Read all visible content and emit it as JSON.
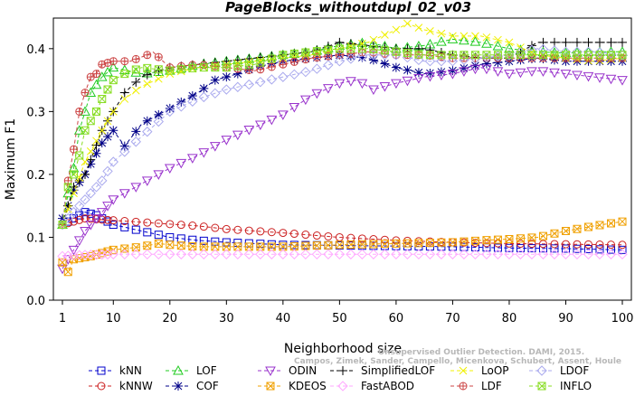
{
  "chart_data": {
    "type": "line",
    "title": "PageBlocks_withoutdupl_02_v03",
    "xlabel": "Neighborhood size",
    "ylabel": "Maximum F1",
    "xlim": [
      1,
      100
    ],
    "ylim": [
      0,
      0.44
    ],
    "x_ticks": [
      1,
      10,
      20,
      30,
      40,
      50,
      60,
      70,
      80,
      90,
      100
    ],
    "y_ticks": [
      0.0,
      0.1,
      0.2,
      0.3,
      0.4
    ],
    "y_tick_labels": [
      "0.0",
      "0.1",
      "0.2",
      "0.3",
      "0.4"
    ],
    "grid": false,
    "legend_position": "bottom",
    "watermark": [
      "Campos, Zimek, Sander, Campello, Micenkova, Schubert, Assent, Houle",
      "Unsupervised Outlier Detection. DAMI, 2015."
    ],
    "series": [
      {
        "name": "kNN",
        "color": "#0000cc",
        "marker": "square",
        "dash": "4,3",
        "points": [
          [
            1,
            0.12
          ],
          [
            3,
            0.13
          ],
          [
            5,
            0.14
          ],
          [
            7,
            0.135
          ],
          [
            10,
            0.12
          ],
          [
            15,
            0.11
          ],
          [
            20,
            0.1
          ],
          [
            25,
            0.095
          ],
          [
            30,
            0.092
          ],
          [
            40,
            0.088
          ],
          [
            50,
            0.087
          ],
          [
            60,
            0.086
          ],
          [
            70,
            0.085
          ],
          [
            80,
            0.083
          ],
          [
            90,
            0.082
          ],
          [
            100,
            0.08
          ]
        ]
      },
      {
        "name": "kNNW",
        "color": "#cc2222",
        "marker": "circle",
        "dash": "4,3",
        "points": [
          [
            1,
            0.12
          ],
          [
            3,
            0.125
          ],
          [
            5,
            0.13
          ],
          [
            8,
            0.128
          ],
          [
            10,
            0.127
          ],
          [
            15,
            0.124
          ],
          [
            20,
            0.121
          ],
          [
            25,
            0.118
          ],
          [
            30,
            0.113
          ],
          [
            40,
            0.107
          ],
          [
            50,
            0.1
          ],
          [
            60,
            0.095
          ],
          [
            70,
            0.092
          ],
          [
            80,
            0.09
          ],
          [
            90,
            0.089
          ],
          [
            100,
            0.088
          ]
        ]
      },
      {
        "name": "LOF",
        "color": "#22cc22",
        "marker": "triangle",
        "dash": "4,3",
        "points": [
          [
            1,
            0.12
          ],
          [
            2,
            0.17
          ],
          [
            3,
            0.21
          ],
          [
            4,
            0.27
          ],
          [
            5,
            0.3
          ],
          [
            6,
            0.33
          ],
          [
            8,
            0.355
          ],
          [
            10,
            0.37
          ],
          [
            15,
            0.36
          ],
          [
            20,
            0.365
          ],
          [
            25,
            0.375
          ],
          [
            30,
            0.38
          ],
          [
            35,
            0.385
          ],
          [
            40,
            0.39
          ],
          [
            45,
            0.395
          ],
          [
            50,
            0.405
          ],
          [
            55,
            0.41
          ],
          [
            60,
            0.4
          ],
          [
            65,
            0.405
          ],
          [
            70,
            0.415
          ],
          [
            75,
            0.41
          ],
          [
            80,
            0.4
          ],
          [
            85,
            0.395
          ],
          [
            90,
            0.393
          ],
          [
            95,
            0.395
          ],
          [
            100,
            0.395
          ]
        ]
      },
      {
        "name": "COF",
        "color": "#000088",
        "marker": "star",
        "dash": "4,3",
        "points": [
          [
            1,
            0.13
          ],
          [
            2,
            0.15
          ],
          [
            3,
            0.175
          ],
          [
            5,
            0.2
          ],
          [
            8,
            0.25
          ],
          [
            10,
            0.27
          ],
          [
            12,
            0.245
          ],
          [
            15,
            0.28
          ],
          [
            20,
            0.305
          ],
          [
            25,
            0.33
          ],
          [
            28,
            0.35
          ],
          [
            32,
            0.36
          ],
          [
            35,
            0.37
          ],
          [
            40,
            0.38
          ],
          [
            45,
            0.385
          ],
          [
            50,
            0.39
          ],
          [
            55,
            0.385
          ],
          [
            60,
            0.37
          ],
          [
            65,
            0.36
          ],
          [
            70,
            0.365
          ],
          [
            75,
            0.375
          ],
          [
            80,
            0.38
          ],
          [
            85,
            0.385
          ],
          [
            90,
            0.38
          ],
          [
            95,
            0.38
          ],
          [
            100,
            0.38
          ]
        ]
      },
      {
        "name": "ODIN",
        "color": "#9933cc",
        "marker": "triangle-down",
        "dash": "4,3",
        "points": [
          [
            1,
            0.05
          ],
          [
            3,
            0.08
          ],
          [
            5,
            0.11
          ],
          [
            8,
            0.14
          ],
          [
            10,
            0.16
          ],
          [
            15,
            0.185
          ],
          [
            20,
            0.21
          ],
          [
            25,
            0.23
          ],
          [
            30,
            0.255
          ],
          [
            35,
            0.275
          ],
          [
            40,
            0.295
          ],
          [
            45,
            0.325
          ],
          [
            50,
            0.345
          ],
          [
            53,
            0.35
          ],
          [
            56,
            0.335
          ],
          [
            60,
            0.345
          ],
          [
            65,
            0.355
          ],
          [
            70,
            0.36
          ],
          [
            75,
            0.37
          ],
          [
            80,
            0.36
          ],
          [
            85,
            0.365
          ],
          [
            90,
            0.36
          ],
          [
            95,
            0.355
          ],
          [
            100,
            0.35
          ]
        ]
      },
      {
        "name": "KDEOS",
        "color": "#f0a000",
        "marker": "square-x",
        "dash": "4,3",
        "points": [
          [
            1,
            0.06
          ],
          [
            2,
            0.045
          ],
          [
            3,
            0.065
          ],
          [
            6,
            0.07
          ],
          [
            10,
            0.08
          ],
          [
            15,
            0.085
          ],
          [
            18,
            0.09
          ],
          [
            20,
            0.088
          ],
          [
            25,
            0.085
          ],
          [
            30,
            0.085
          ],
          [
            40,
            0.085
          ],
          [
            50,
            0.088
          ],
          [
            60,
            0.09
          ],
          [
            70,
            0.092
          ],
          [
            75,
            0.095
          ],
          [
            80,
            0.097
          ],
          [
            85,
            0.1
          ],
          [
            90,
            0.11
          ],
          [
            95,
            0.118
          ],
          [
            100,
            0.125
          ]
        ]
      },
      {
        "name": "SimplifiedLOF",
        "color": "#000000",
        "marker": "plus",
        "dash": "4,3",
        "points": [
          [
            1,
            0.12
          ],
          [
            2,
            0.15
          ],
          [
            3,
            0.18
          ],
          [
            5,
            0.2
          ],
          [
            8,
            0.27
          ],
          [
            10,
            0.3
          ],
          [
            12,
            0.33
          ],
          [
            15,
            0.355
          ],
          [
            18,
            0.365
          ],
          [
            20,
            0.37
          ],
          [
            25,
            0.375
          ],
          [
            30,
            0.38
          ],
          [
            35,
            0.385
          ],
          [
            40,
            0.39
          ],
          [
            45,
            0.395
          ],
          [
            50,
            0.41
          ],
          [
            55,
            0.405
          ],
          [
            60,
            0.4
          ],
          [
            65,
            0.4
          ],
          [
            70,
            0.39
          ],
          [
            75,
            0.385
          ],
          [
            80,
            0.385
          ],
          [
            85,
            0.41
          ],
          [
            90,
            0.41
          ],
          [
            95,
            0.41
          ],
          [
            100,
            0.41
          ]
        ]
      },
      {
        "name": "FastABOD",
        "color": "#ffaaff",
        "marker": "diamond",
        "dash": "4,3",
        "points": [
          [
            1,
            0.07
          ],
          [
            5,
            0.072
          ],
          [
            10,
            0.073
          ],
          [
            20,
            0.073
          ],
          [
            30,
            0.073
          ],
          [
            40,
            0.073
          ],
          [
            50,
            0.073
          ],
          [
            60,
            0.073
          ],
          [
            70,
            0.073
          ],
          [
            80,
            0.073
          ],
          [
            90,
            0.073
          ],
          [
            100,
            0.073
          ]
        ]
      },
      {
        "name": "LoOP",
        "color": "#f0f000",
        "marker": "x",
        "dash": "4,3",
        "points": [
          [
            1,
            0.12
          ],
          [
            3,
            0.17
          ],
          [
            5,
            0.22
          ],
          [
            8,
            0.27
          ],
          [
            10,
            0.3
          ],
          [
            12,
            0.32
          ],
          [
            15,
            0.34
          ],
          [
            20,
            0.36
          ],
          [
            25,
            0.37
          ],
          [
            30,
            0.375
          ],
          [
            35,
            0.38
          ],
          [
            40,
            0.385
          ],
          [
            45,
            0.39
          ],
          [
            50,
            0.4
          ],
          [
            55,
            0.41
          ],
          [
            60,
            0.43
          ],
          [
            62,
            0.44
          ],
          [
            65,
            0.43
          ],
          [
            70,
            0.42
          ],
          [
            75,
            0.42
          ],
          [
            80,
            0.41
          ],
          [
            85,
            0.39
          ],
          [
            90,
            0.385
          ],
          [
            95,
            0.38
          ],
          [
            100,
            0.385
          ]
        ]
      },
      {
        "name": "LDF",
        "color": "#cc4444",
        "marker": "circle-plus",
        "dash": "4,3",
        "points": [
          [
            1,
            0.12
          ],
          [
            2,
            0.19
          ],
          [
            3,
            0.24
          ],
          [
            4,
            0.3
          ],
          [
            5,
            0.33
          ],
          [
            6,
            0.355
          ],
          [
            7,
            0.36
          ],
          [
            8,
            0.375
          ],
          [
            10,
            0.38
          ],
          [
            13,
            0.38
          ],
          [
            16,
            0.39
          ],
          [
            17,
            0.395
          ],
          [
            20,
            0.37
          ],
          [
            25,
            0.375
          ],
          [
            30,
            0.37
          ],
          [
            35,
            0.365
          ],
          [
            40,
            0.375
          ],
          [
            45,
            0.385
          ],
          [
            50,
            0.39
          ],
          [
            55,
            0.395
          ],
          [
            60,
            0.39
          ],
          [
            65,
            0.39
          ],
          [
            70,
            0.385
          ],
          [
            75,
            0.385
          ],
          [
            80,
            0.385
          ],
          [
            85,
            0.385
          ],
          [
            90,
            0.385
          ],
          [
            95,
            0.385
          ],
          [
            100,
            0.385
          ]
        ]
      },
      {
        "name": "LDOF",
        "color": "#aaaaee",
        "marker": "diamond",
        "dash": "4,3",
        "points": [
          [
            1,
            0.12
          ],
          [
            3,
            0.14
          ],
          [
            5,
            0.16
          ],
          [
            8,
            0.19
          ],
          [
            10,
            0.22
          ],
          [
            15,
            0.26
          ],
          [
            20,
            0.3
          ],
          [
            25,
            0.32
          ],
          [
            30,
            0.335
          ],
          [
            35,
            0.345
          ],
          [
            40,
            0.355
          ],
          [
            45,
            0.365
          ],
          [
            50,
            0.38
          ],
          [
            55,
            0.39
          ],
          [
            60,
            0.39
          ],
          [
            65,
            0.38
          ],
          [
            70,
            0.38
          ],
          [
            75,
            0.385
          ],
          [
            80,
            0.39
          ],
          [
            85,
            0.4
          ],
          [
            90,
            0.395
          ],
          [
            95,
            0.395
          ],
          [
            100,
            0.39
          ]
        ]
      },
      {
        "name": "INFLO",
        "color": "#88dd22",
        "marker": "square-x",
        "dash": "4,3",
        "points": [
          [
            1,
            0.12
          ],
          [
            2,
            0.18
          ],
          [
            3,
            0.2
          ],
          [
            4,
            0.23
          ],
          [
            5,
            0.27
          ],
          [
            7,
            0.3
          ],
          [
            8,
            0.32
          ],
          [
            10,
            0.35
          ],
          [
            12,
            0.36
          ],
          [
            15,
            0.37
          ],
          [
            20,
            0.365
          ],
          [
            25,
            0.37
          ],
          [
            30,
            0.37
          ],
          [
            35,
            0.375
          ],
          [
            40,
            0.39
          ],
          [
            45,
            0.395
          ],
          [
            50,
            0.4
          ],
          [
            55,
            0.4
          ],
          [
            60,
            0.395
          ],
          [
            65,
            0.39
          ],
          [
            70,
            0.39
          ],
          [
            75,
            0.39
          ],
          [
            80,
            0.39
          ],
          [
            85,
            0.39
          ],
          [
            90,
            0.39
          ],
          [
            95,
            0.39
          ],
          [
            100,
            0.39
          ]
        ]
      }
    ]
  }
}
